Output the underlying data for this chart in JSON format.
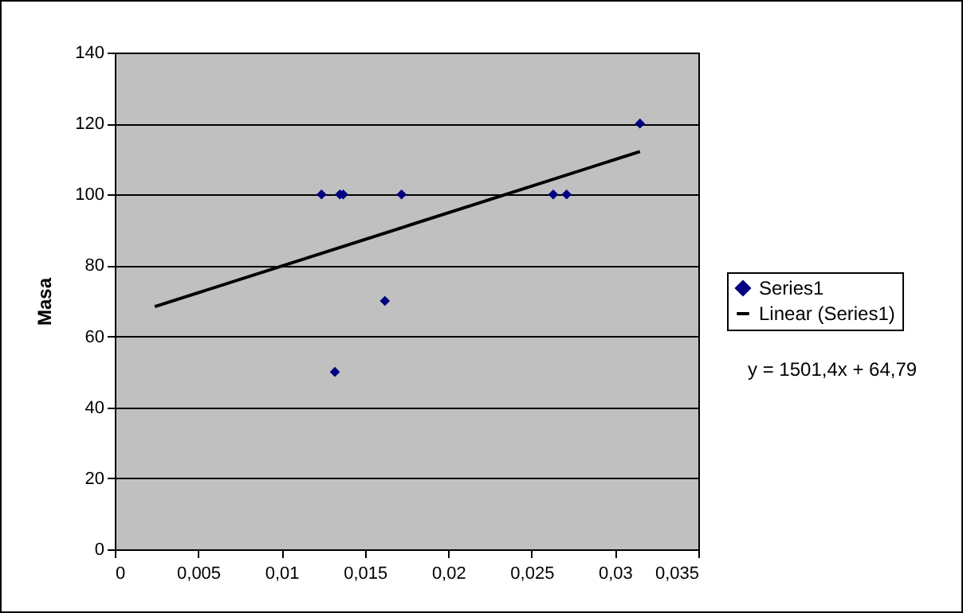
{
  "chart_data": {
    "type": "scatter",
    "ylabel": "Masa",
    "legend": "right",
    "grid": "y",
    "xlim": [
      0,
      0.035
    ],
    "xticks": [
      0,
      {
        "value": 0.005,
        "label": "0,005"
      },
      {
        "value": 0.01,
        "label": "0,01"
      },
      {
        "value": 0.015,
        "label": "0,015"
      },
      {
        "value": 0.02,
        "label": "0,02"
      },
      {
        "value": 0.025,
        "label": "0,025"
      },
      {
        "value": 0.03,
        "label": "0,03"
      },
      {
        "value": 0.035,
        "label": "0,035"
      }
    ],
    "ylim": [
      0,
      140
    ],
    "yticks": [
      0,
      20,
      40,
      60,
      80,
      100,
      120,
      140
    ],
    "x": [
      0.0124,
      0.0135,
      0.0137,
      0.0172,
      0.0162,
      0.0132,
      0.0263,
      0.0271,
      0.0315
    ],
    "series": [
      {
        "name": "Series1",
        "marker": "diamond",
        "color": "#000080",
        "values": [
          100,
          100,
          100,
          100,
          70,
          50,
          100,
          100,
          120
        ]
      },
      {
        "name": "Linear (Series1)",
        "type": "line",
        "color": "#000000",
        "line_style": "solid",
        "x": [
          0.0024,
          0.0315
        ],
        "values": [
          68.4,
          112.1
        ]
      }
    ],
    "annotations": [
      "y = 1501,4x + 64,79"
    ]
  }
}
